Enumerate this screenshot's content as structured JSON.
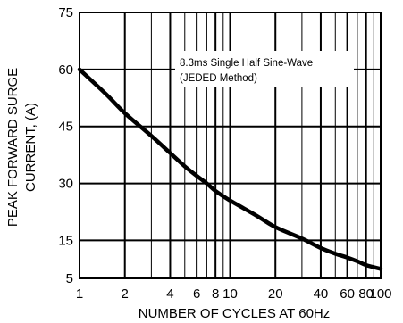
{
  "chart_data": {
    "type": "line",
    "title": "",
    "xlabel": "NUMBER OF CYCLES AT 60Hz",
    "ylabel": [
      "PEAK FORWARD SURGE",
      "CURRENT, (A)"
    ],
    "x_scale": "log",
    "xlim": [
      1,
      100
    ],
    "ylim": [
      5,
      75
    ],
    "x_ticks": [
      1,
      2,
      4,
      6,
      8,
      10,
      20,
      40,
      60,
      80,
      100
    ],
    "x_tick_labels": [
      "1",
      "2",
      "4",
      "6",
      "8",
      "10",
      "20",
      "40",
      "60",
      "80",
      "100"
    ],
    "y_ticks": [
      5,
      15,
      30,
      45,
      60,
      75
    ],
    "y_tick_labels": [
      "5",
      "15",
      "30",
      "45",
      "60",
      "75"
    ],
    "grid": true,
    "annotation": [
      "8.3ms Single Half Sine-Wave",
      "(JEDED Method)"
    ],
    "colors": {
      "line": "#000000",
      "grid": "#000000",
      "background": "#ffffff"
    },
    "series": [
      {
        "x": [
          1,
          1.5,
          2,
          3,
          4,
          5,
          6,
          7,
          8,
          10,
          15,
          20,
          30,
          40,
          50,
          60,
          70,
          80,
          100
        ],
        "y": [
          60,
          53.5,
          48.5,
          42.5,
          38,
          34.5,
          32,
          30,
          28,
          25.5,
          21.5,
          18.5,
          15.5,
          13,
          11.5,
          10.5,
          9.5,
          8.5,
          7.5
        ]
      }
    ]
  }
}
